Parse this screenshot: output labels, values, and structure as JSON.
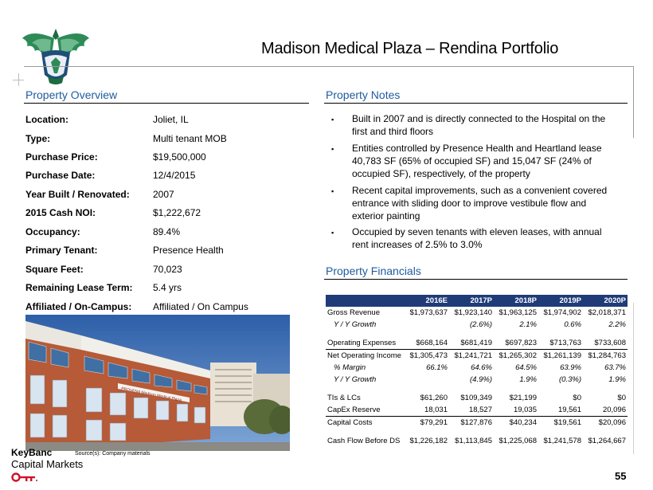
{
  "header": {
    "title": "Madison Medical Plaza – Rendina Portfolio"
  },
  "overview": {
    "heading": "Property Overview",
    "rows": [
      {
        "label": "Location:",
        "value": "Joliet, IL"
      },
      {
        "label": "Type:",
        "value": "Multi tenant MOB"
      },
      {
        "label": "Purchase Price:",
        "value": "$19,500,000"
      },
      {
        "label": "Purchase Date:",
        "value": "12/4/2015"
      },
      {
        "label": "Year Built / Renovated:",
        "value": "2007"
      },
      {
        "label": "2015 Cash NOI:",
        "value": "$1,222,672"
      },
      {
        "label": "Occupancy:",
        "value": "89.4%"
      },
      {
        "label": "Primary Tenant:",
        "value": "Presence Health"
      },
      {
        "label": "Square Feet:",
        "value": "70,023"
      },
      {
        "label": "Remaining Lease Term:",
        "value": "5.4 yrs"
      },
      {
        "label": "Affiliated / On-Campus:",
        "value": "Affiliated / On Campus"
      }
    ]
  },
  "notes": {
    "heading": "Property Notes",
    "bullet": "▪",
    "items": [
      "Built in 2007 and is directly connected to the Hospital on the first and third floors",
      "Entities controlled by Presence Health and Heartland lease 40,783 SF (65% of occupied SF) and 15,047 SF (24% of occupied SF), respectively, of the property",
      "Recent capital improvements, such as a convenient covered entrance with sliding door to improve vestibule flow and exterior painting",
      "Occupied by seven tenants with eleven leases, with annual rent increases of 2.5% to 3.0%"
    ]
  },
  "financials": {
    "heading": "Property Financials",
    "columns": [
      "2016E",
      "2017P",
      "2018P",
      "2019P",
      "2020P"
    ],
    "rows": [
      {
        "label": "Gross Revenue",
        "values": [
          "$1,973,637",
          "$1,923,140",
          "$1,963,125",
          "$1,974,902",
          "$2,018,371"
        ]
      },
      {
        "label": "Y / Y Growth",
        "values": [
          "",
          "(2.6%)",
          "2.1%",
          "0.6%",
          "2.2%"
        ]
      },
      {
        "label": "Operating Expenses",
        "values": [
          "$668,164",
          "$681,419",
          "$697,823",
          "$713,763",
          "$733,608"
        ]
      },
      {
        "label": "Net Operating Income",
        "values": [
          "$1,305,473",
          "$1,241,721",
          "$1,265,302",
          "$1,261,139",
          "$1,284,763"
        ]
      },
      {
        "label": "% Margin",
        "values": [
          "66.1%",
          "64.6%",
          "64.5%",
          "63.9%",
          "63.7%"
        ]
      },
      {
        "label": "Y / Y Growth",
        "values": [
          "",
          "(4.9%)",
          "1.9%",
          "(0.3%)",
          "1.9%"
        ]
      },
      {
        "label": "TIs & LCs",
        "values": [
          "$61,260",
          "$109,349",
          "$21,199",
          "$0",
          "$0"
        ]
      },
      {
        "label": "CapEx Reserve",
        "values": [
          "18,031",
          "18,527",
          "19,035",
          "19,561",
          "20,096"
        ]
      },
      {
        "label": "Capital Costs",
        "values": [
          "$79,291",
          "$127,876",
          "$40,234",
          "$19,561",
          "$20,096"
        ]
      },
      {
        "label": "Cash Flow Before DS",
        "values": [
          "$1,226,182",
          "$1,113,845",
          "$1,225,068",
          "$1,241,578",
          "$1,264,667"
        ]
      }
    ]
  },
  "photo": {
    "sign_text": "PROVENA Madison Medical Plaza"
  },
  "footer": {
    "brand_line1": "KeyBanc",
    "brand_line2": "Capital Markets",
    "source": "Source(s): Company materials",
    "page_number": "55"
  },
  "colors": {
    "accent": "#1f5b9e",
    "table_header": "#1f3c78",
    "key_red": "#d0102a"
  }
}
